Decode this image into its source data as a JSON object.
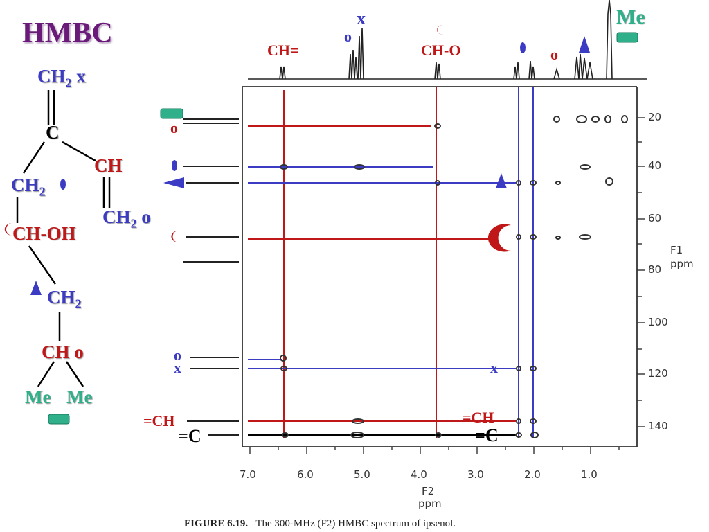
{
  "title": "HMBC",
  "molecule": {
    "ch2_top": "CH",
    "ch2_top_sub": "2",
    "ch2_top_tag": "x",
    "c": "C",
    "ch2_left": "CH",
    "ch2_left_sub": "2",
    "ch_right": "CH",
    "ch2_right": "CH",
    "ch2_right_sub": "2",
    "ch2_right_tag": "o",
    "choh": "CH-OH",
    "ch2_mid": "CH",
    "ch2_mid_sub": "2",
    "ch_low": "CH",
    "ch_low_tag": "o",
    "me_left": "Me",
    "me_right": "Me"
  },
  "top_labels": {
    "ch_eq": "CH=",
    "x": "x",
    "o1": "o",
    "ch_o": "CH-O",
    "o2": "o",
    "me": "Me"
  },
  "left_labels": {
    "o_top": "o",
    "o_low": "o",
    "x_low": "x",
    "eq_ch": "=CH",
    "eq_c": "=C"
  },
  "inner_labels": {
    "x": "x",
    "eq_ch": "=CH",
    "eq_c": "=C"
  },
  "axis": {
    "f2_ticks": [
      "7.0",
      "6.0",
      "5.0",
      "4.0",
      "3.0",
      "2.0",
      "1.0"
    ],
    "f2_label_1": "F2",
    "f2_label_2": "ppm",
    "f1_ticks": [
      "20",
      "40",
      "60",
      "80",
      "100",
      "120",
      "140"
    ],
    "f1_label_1": "F1",
    "f1_label_2": "ppm"
  },
  "caption": {
    "figure": "FIGURE 6.19.",
    "text": "The 300-MHz (F2) HMBC spectrum of ipsenol."
  },
  "colors": {
    "red": "#c01818",
    "blue": "#3b3bc4",
    "teal": "#2fb08a",
    "purple": "#6a1a78"
  }
}
